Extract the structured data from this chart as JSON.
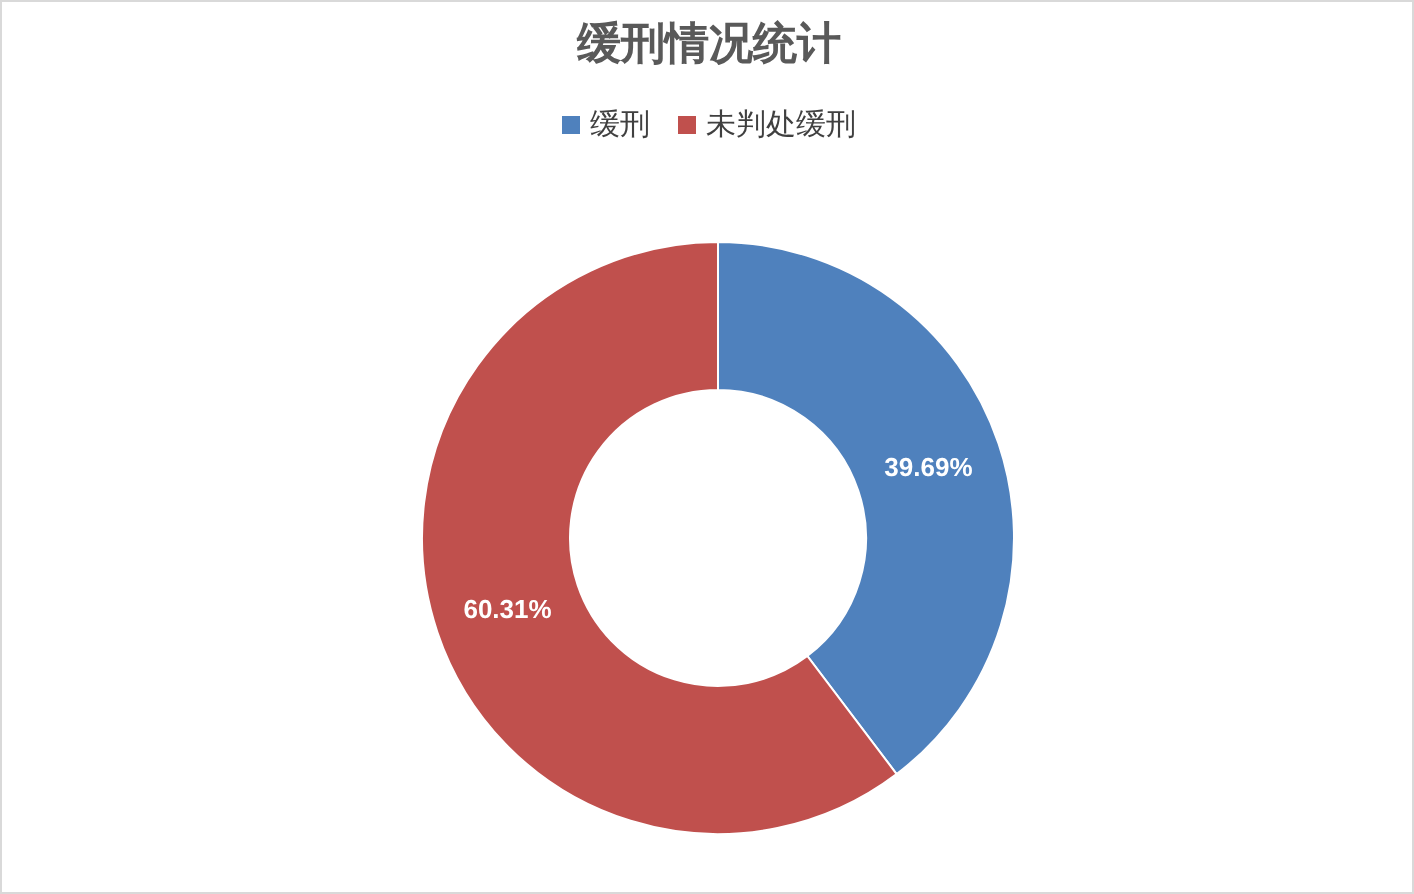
{
  "chart_data": {
    "type": "donut",
    "title": "缓刑情况统计",
    "categories": [
      "缓刑",
      "未判处缓刑"
    ],
    "values": [
      39.69,
      60.31
    ],
    "colors": [
      "#4f81bd",
      "#c0504d"
    ],
    "value_labels": [
      "39.69%",
      "60.31%"
    ],
    "legend": "top"
  }
}
